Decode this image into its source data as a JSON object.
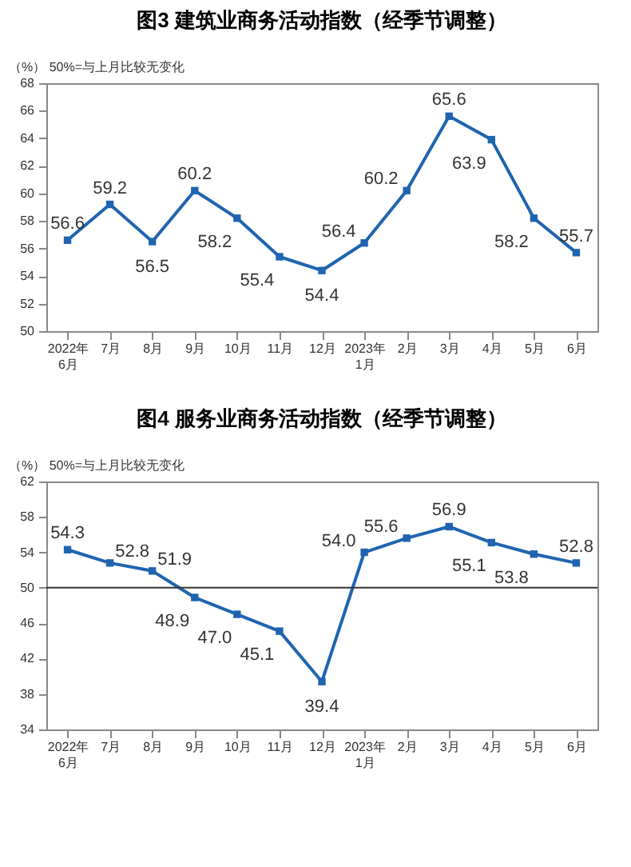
{
  "chart_data": [
    {
      "type": "line",
      "title": "图3 建筑业商务活动指数（经季节调整）",
      "ylabel": "（%）  50%=与上月比较无变化",
      "categories": [
        "2022年\n6月",
        "7月",
        "8月",
        "9月",
        "10月",
        "11月",
        "12月",
        "2023年\n1月",
        "2月",
        "3月",
        "4月",
        "5月",
        "6月"
      ],
      "series": [
        {
          "color": "#1f64b0",
          "values": [
            56.6,
            59.2,
            56.5,
            60.2,
            58.2,
            55.4,
            54.4,
            56.4,
            60.2,
            65.6,
            63.9,
            58.2,
            55.7
          ]
        }
      ],
      "value_labels": [
        "56.6",
        "59.2",
        "56.5",
        "60.2",
        "58.2",
        "55.4",
        "54.4",
        "56.4",
        "60.2",
        "65.6",
        "63.9",
        "58.2",
        "55.7"
      ],
      "ylim": [
        50,
        68
      ],
      "yticks": [
        50,
        52,
        54,
        56,
        58,
        60,
        62,
        64,
        66,
        68
      ],
      "marker": "square"
    },
    {
      "type": "line",
      "title": "图4 服务业商务活动指数（经季节调整）",
      "ylabel": "（%）  50%=与上月比较无变化",
      "categories": [
        "2022年\n6月",
        "7月",
        "8月",
        "9月",
        "10月",
        "11月",
        "12月",
        "2023年\n1月",
        "2月",
        "3月",
        "4月",
        "5月",
        "6月"
      ],
      "series": [
        {
          "color": "#1f64b0",
          "values": [
            54.3,
            52.8,
            51.9,
            48.9,
            47.0,
            45.1,
            39.4,
            54.0,
            55.6,
            56.9,
            55.1,
            53.8,
            52.8
          ]
        }
      ],
      "value_labels": [
        "54.3",
        "52.8",
        "51.9",
        "48.9",
        "47.0",
        "45.1",
        "39.4",
        "54.0",
        "55.6",
        "56.9",
        "55.1",
        "53.8",
        "52.8"
      ],
      "ylim": [
        34,
        62
      ],
      "yticks": [
        34,
        38,
        42,
        46,
        50,
        54,
        58,
        62
      ],
      "marker": "square",
      "ref_lines": [
        {
          "axis": "y",
          "value": 50
        }
      ]
    }
  ]
}
